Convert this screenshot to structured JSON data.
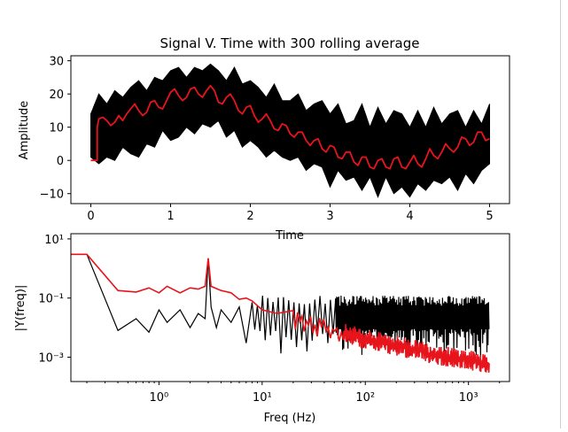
{
  "figure": {
    "background": "#ffffff"
  },
  "chart_data": [
    {
      "type": "line",
      "title": "Signal V. Time with 300 rolling average",
      "xlabel": "Time",
      "ylabel": "Amplitude",
      "xlim": [
        -0.25,
        5.25
      ],
      "ylim": [
        -13,
        31.5
      ],
      "xticks": [
        0,
        1,
        2,
        3,
        4,
        5
      ],
      "xtick_labels": [
        "0",
        "1",
        "2",
        "3",
        "4",
        "5"
      ],
      "yticks": [
        -10,
        0,
        10,
        20,
        30
      ],
      "ytick_labels": [
        "−10",
        "0",
        "10",
        "20",
        "30"
      ],
      "grid": false,
      "legend": "none",
      "series": [
        {
          "color": "#000000",
          "style": "filled-oscillation-band",
          "x": [
            0.0,
            0.1,
            0.2,
            0.3,
            0.4,
            0.5,
            0.6,
            0.7,
            0.8,
            0.9,
            1.0,
            1.1,
            1.2,
            1.3,
            1.4,
            1.5,
            1.6,
            1.7,
            1.8,
            1.9,
            2.0,
            2.1,
            2.2,
            2.3,
            2.4,
            2.5,
            2.6,
            2.7,
            2.8,
            2.9,
            3.0,
            3.1,
            3.2,
            3.3,
            3.4,
            3.5,
            3.6,
            3.7,
            3.8,
            3.9,
            4.0,
            4.1,
            4.2,
            4.3,
            4.4,
            4.5,
            4.6,
            4.7,
            4.8,
            4.9,
            5.0
          ],
          "upper": [
            14,
            20,
            17,
            21,
            19,
            22,
            24,
            21,
            25,
            24,
            27,
            28,
            25,
            28,
            27,
            29,
            27,
            24,
            28,
            23,
            24,
            22,
            19,
            23,
            18,
            18,
            20,
            15,
            17,
            18,
            14,
            17,
            11,
            12,
            17,
            10,
            16,
            11,
            15,
            14,
            10,
            15,
            10,
            16,
            11,
            14,
            15,
            10,
            15,
            11,
            17
          ],
          "lower": [
            1,
            -1,
            1,
            0,
            4,
            2,
            1,
            5,
            4,
            9,
            6,
            7,
            10,
            8,
            11,
            10,
            12,
            7,
            9,
            4,
            6,
            4,
            1,
            3,
            1,
            0,
            1,
            -3,
            -1,
            -2,
            -8,
            -3,
            -6,
            -5,
            -9,
            -5,
            -11,
            -5,
            -10,
            -8,
            -11,
            -7,
            -9,
            -6,
            -7,
            -5,
            -9,
            -4,
            -7,
            -3,
            -1
          ]
        },
        {
          "color": "#e8141c",
          "style": "rolling-average",
          "x": [
            0.0,
            0.08,
            0.08,
            0.1,
            0.15,
            0.2,
            0.25,
            0.3,
            0.35,
            0.4,
            0.45,
            0.5,
            0.55,
            0.6,
            0.65,
            0.7,
            0.75,
            0.8,
            0.85,
            0.9,
            0.95,
            1.0,
            1.05,
            1.1,
            1.15,
            1.2,
            1.25,
            1.3,
            1.35,
            1.4,
            1.45,
            1.5,
            1.55,
            1.6,
            1.65,
            1.7,
            1.75,
            1.8,
            1.85,
            1.9,
            1.95,
            2.0,
            2.05,
            2.1,
            2.15,
            2.2,
            2.25,
            2.3,
            2.35,
            2.4,
            2.45,
            2.5,
            2.55,
            2.6,
            2.65,
            2.7,
            2.75,
            2.8,
            2.85,
            2.9,
            2.95,
            3.0,
            3.05,
            3.1,
            3.15,
            3.2,
            3.25,
            3.3,
            3.35,
            3.4,
            3.45,
            3.5,
            3.55,
            3.6,
            3.65,
            3.7,
            3.75,
            3.8,
            3.85,
            3.9,
            3.95,
            4.0,
            4.05,
            4.1,
            4.15,
            4.2,
            4.25,
            4.3,
            4.35,
            4.4,
            4.45,
            4.5,
            4.55,
            4.6,
            4.65,
            4.7,
            4.75,
            4.8,
            4.85,
            4.9,
            4.95,
            5.0
          ],
          "y": [
            0,
            0,
            10,
            12.5,
            13,
            12,
            10.5,
            11.5,
            13.5,
            12,
            14,
            15.5,
            17,
            15,
            13.5,
            14.5,
            17.5,
            18,
            16,
            15.5,
            18,
            20.5,
            21.5,
            19.5,
            18,
            19,
            21.5,
            22,
            20,
            19,
            21,
            22.5,
            21,
            17.5,
            17,
            19,
            20,
            18,
            15,
            14,
            16,
            16.5,
            13.5,
            11.5,
            12.5,
            14,
            12,
            9.5,
            9,
            11,
            10.5,
            8,
            7,
            8.5,
            8.5,
            6,
            4.5,
            6,
            6.5,
            3.5,
            2.5,
            4.5,
            4,
            1,
            0.5,
            2.5,
            2.5,
            -0.5,
            -1.5,
            1,
            1,
            -2,
            -2.5,
            0,
            0.5,
            -2,
            -2.5,
            0.5,
            1,
            -2,
            -2.5,
            -0.5,
            1.5,
            -1,
            -2,
            0.5,
            3.5,
            1.5,
            0.5,
            2.5,
            5,
            3.5,
            2.5,
            4,
            7,
            6.5,
            4.5,
            5.5,
            8.5,
            8.5,
            6,
            6.5
          ]
        }
      ]
    },
    {
      "type": "line",
      "title": "",
      "xlabel": "Freq (Hz)",
      "ylabel": "|Y(freq)|",
      "xscale": "log",
      "yscale": "log",
      "xlim": [
        0.14,
        2500
      ],
      "ylim": [
        0.00015,
        15
      ],
      "xticks": [
        1,
        10,
        100,
        1000
      ],
      "xtick_labels": [
        "10⁰",
        "10¹",
        "10²",
        "10³"
      ],
      "yticks": [
        0.001,
        0.1,
        10
      ],
      "ytick_labels": [
        "10⁻³",
        "10⁻¹",
        "10¹"
      ],
      "grid": false,
      "legend": "none",
      "series": [
        {
          "color": "#000000",
          "style": "noisy-spectrum",
          "x": [
            0.14,
            0.2,
            0.4,
            0.6,
            0.8,
            1.0,
            1.2,
            1.6,
            2.0,
            2.4,
            2.8,
            3.0,
            3.2,
            3.6,
            4.0,
            5,
            6,
            7,
            8,
            10,
            14,
            20,
            30,
            50,
            80,
            120,
            200,
            300,
            500,
            800,
            1200,
            1600
          ],
          "y": [
            3,
            3,
            0.008,
            0.02,
            0.007,
            0.04,
            0.015,
            0.04,
            0.01,
            0.03,
            0.02,
            2.2,
            0.05,
            0.01,
            0.04,
            0.015,
            0.05,
            0.003,
            0.03,
            0.008,
            0.02,
            0.03,
            0.02,
            0.03,
            0.03,
            0.03,
            0.03,
            0.03,
            0.03,
            0.03,
            0.03,
            0.03
          ],
          "band_from_hz": 8,
          "band_upper": 0.11,
          "band_lower": 0.001
        },
        {
          "color": "#e8141c",
          "style": "smoothed-spectrum",
          "x": [
            0.14,
            0.2,
            0.4,
            0.6,
            0.8,
            1.0,
            1.2,
            1.6,
            2.0,
            2.4,
            2.8,
            3.0,
            3.2,
            4,
            5,
            6,
            7,
            8,
            10,
            14,
            20,
            30,
            50,
            80,
            120,
            200,
            300,
            500,
            800,
            1200,
            1600
          ],
          "y": [
            3,
            3,
            0.18,
            0.16,
            0.22,
            0.15,
            0.25,
            0.15,
            0.22,
            0.2,
            0.25,
            2.2,
            0.25,
            0.18,
            0.15,
            0.09,
            0.1,
            0.08,
            0.04,
            0.03,
            0.02,
            0.012,
            0.008,
            0.005,
            0.0035,
            0.0025,
            0.0018,
            0.0012,
            0.0009,
            0.0007,
            0.0006
          ],
          "band_from_hz": 20,
          "band_spread": 2.2
        }
      ]
    }
  ]
}
